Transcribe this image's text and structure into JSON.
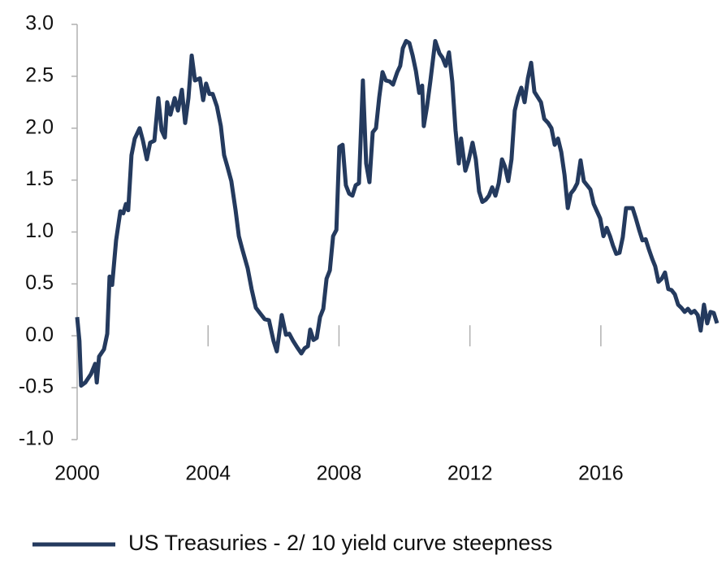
{
  "chart_data": {
    "type": "line",
    "x": [
      2000.0,
      2000.07,
      2000.12,
      2000.25,
      2000.42,
      2000.55,
      2000.6,
      2000.67,
      2000.82,
      2000.92,
      2000.99,
      2001.07,
      2001.19,
      2001.32,
      2001.41,
      2001.49,
      2001.56,
      2001.66,
      2001.76,
      2001.91,
      2002.01,
      2002.13,
      2002.23,
      2002.36,
      2002.48,
      2002.58,
      2002.68,
      2002.75,
      2002.85,
      2002.98,
      2003.08,
      2003.2,
      2003.3,
      2003.4,
      2003.5,
      2003.6,
      2003.75,
      2003.85,
      2003.94,
      2004.04,
      2004.14,
      2004.27,
      2004.39,
      2004.49,
      2004.59,
      2004.71,
      2004.84,
      2004.94,
      2005.04,
      2005.21,
      2005.33,
      2005.46,
      2005.58,
      2005.73,
      2005.86,
      2006.0,
      2006.1,
      2006.25,
      2006.38,
      2006.48,
      2006.6,
      2006.72,
      2006.85,
      2006.95,
      2007.05,
      2007.12,
      2007.22,
      2007.32,
      2007.42,
      2007.52,
      2007.62,
      2007.72,
      2007.82,
      2007.92,
      2008.01,
      2008.11,
      2008.21,
      2008.31,
      2008.41,
      2008.51,
      2008.61,
      2008.73,
      2008.83,
      2008.93,
      2009.03,
      2009.13,
      2009.23,
      2009.33,
      2009.43,
      2009.55,
      2009.65,
      2009.78,
      2009.87,
      2009.95,
      2010.05,
      2010.15,
      2010.25,
      2010.35,
      2010.45,
      2010.54,
      2010.59,
      2010.69,
      2010.79,
      2010.94,
      2011.07,
      2011.16,
      2011.26,
      2011.36,
      2011.46,
      2011.56,
      2011.66,
      2011.73,
      2011.86,
      2011.96,
      2012.08,
      2012.18,
      2012.28,
      2012.38,
      2012.48,
      2012.58,
      2012.68,
      2012.78,
      2012.88,
      2012.98,
      2013.07,
      2013.17,
      2013.27,
      2013.37,
      2013.47,
      2013.57,
      2013.67,
      2013.77,
      2013.87,
      2013.97,
      2014.07,
      2014.17,
      2014.27,
      2014.39,
      2014.49,
      2014.59,
      2014.69,
      2014.79,
      2014.89,
      2014.99,
      2015.08,
      2015.18,
      2015.28,
      2015.38,
      2015.48,
      2015.58,
      2015.68,
      2015.78,
      2015.88,
      2015.98,
      2016.08,
      2016.18,
      2016.28,
      2016.37,
      2016.47,
      2016.57,
      2016.67,
      2016.77,
      2016.87,
      2016.97,
      2017.07,
      2017.17,
      2017.27,
      2017.37,
      2017.47,
      2017.57,
      2017.66,
      2017.76,
      2017.86,
      2017.96,
      2018.06,
      2018.16,
      2018.26,
      2018.36,
      2018.46,
      2018.56,
      2018.66,
      2018.76,
      2018.86,
      2018.96,
      2019.05,
      2019.15,
      2019.25,
      2019.35,
      2019.45,
      2019.55
    ],
    "series": [
      {
        "name": "US Treasuries - 2/ 10 yield curve steepness",
        "color": "#243a5e",
        "values": [
          0.18,
          -0.05,
          -0.48,
          -0.45,
          -0.37,
          -0.27,
          -0.45,
          -0.2,
          -0.13,
          0.02,
          0.57,
          0.49,
          0.92,
          1.2,
          1.18,
          1.27,
          1.21,
          1.74,
          1.9,
          2.0,
          1.88,
          1.7,
          1.86,
          1.88,
          2.29,
          1.98,
          1.91,
          2.25,
          2.13,
          2.29,
          2.17,
          2.37,
          2.05,
          2.29,
          2.7,
          2.46,
          2.48,
          2.27,
          2.43,
          2.33,
          2.33,
          2.21,
          2.02,
          1.74,
          1.63,
          1.49,
          1.21,
          0.96,
          0.84,
          0.65,
          0.45,
          0.27,
          0.22,
          0.16,
          0.15,
          -0.05,
          -0.15,
          0.2,
          0.01,
          0.02,
          -0.05,
          -0.11,
          -0.17,
          -0.12,
          -0.1,
          0.06,
          -0.04,
          -0.02,
          0.18,
          0.26,
          0.55,
          0.63,
          0.96,
          1.02,
          1.82,
          1.84,
          1.45,
          1.37,
          1.35,
          1.45,
          1.47,
          2.46,
          1.66,
          1.48,
          1.96,
          2.0,
          2.3,
          2.54,
          2.46,
          2.45,
          2.42,
          2.54,
          2.6,
          2.77,
          2.84,
          2.82,
          2.7,
          2.55,
          2.34,
          2.41,
          2.02,
          2.21,
          2.45,
          2.84,
          2.72,
          2.68,
          2.6,
          2.73,
          2.45,
          1.98,
          1.66,
          1.9,
          1.59,
          1.69,
          1.86,
          1.7,
          1.39,
          1.29,
          1.31,
          1.35,
          1.43,
          1.35,
          1.47,
          1.7,
          1.63,
          1.49,
          1.7,
          2.17,
          2.3,
          2.39,
          2.25,
          2.48,
          2.63,
          2.35,
          2.3,
          2.25,
          2.09,
          2.05,
          2.0,
          1.84,
          1.9,
          1.77,
          1.55,
          1.23,
          1.37,
          1.41,
          1.47,
          1.69,
          1.49,
          1.45,
          1.41,
          1.27,
          1.2,
          1.13,
          0.96,
          1.04,
          0.96,
          0.87,
          0.79,
          0.8,
          0.95,
          1.23,
          1.23,
          1.23,
          1.13,
          1.02,
          0.92,
          0.93,
          0.83,
          0.74,
          0.67,
          0.52,
          0.55,
          0.61,
          0.45,
          0.44,
          0.4,
          0.3,
          0.27,
          0.23,
          0.26,
          0.22,
          0.24,
          0.2,
          0.05,
          0.3,
          0.12,
          0.23,
          0.22,
          0.12
        ]
      }
    ],
    "xlim": [
      2000,
      2019.6
    ],
    "xticks": [
      2000,
      2004,
      2008,
      2012,
      2016
    ],
    "ylim": [
      -1,
      3
    ],
    "yticks": [
      {
        "value": -1,
        "label": "-1.0"
      },
      -0.5,
      {
        "value": 0,
        "label": "0.0"
      },
      0.5,
      {
        "value": 1,
        "label": "1.0"
      },
      1.5,
      {
        "value": 2,
        "label": "2.0"
      },
      2.5,
      {
        "value": 3,
        "label": "3.0"
      }
    ],
    "legend": "bottom"
  }
}
